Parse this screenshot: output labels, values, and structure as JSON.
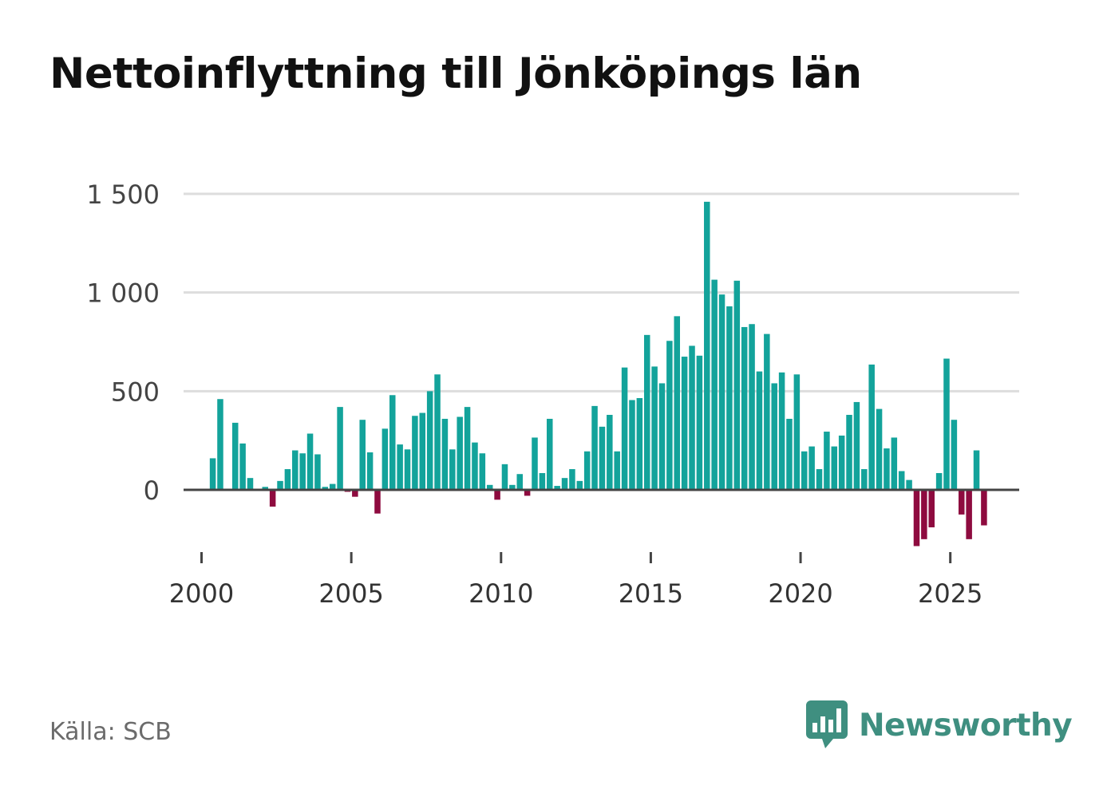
{
  "title": "Nettoinflyttning till Jönköpings län",
  "source": "Källa: SCB",
  "brand": {
    "name": "Newsworthy",
    "icon": "bar-chart-speech-bubble-icon"
  },
  "colors": {
    "positive": "#13a39b",
    "negative": "#8e0b3f",
    "grid": "#dddddd",
    "axis": "#444444",
    "brand": "#3f8f80"
  },
  "chart_data": {
    "type": "bar",
    "title": "Nettoinflyttning till Jönköpings län",
    "xlabel": "",
    "ylabel": "",
    "frequency": "quarterly",
    "start": 2000,
    "xlim": [
      1999.4,
      2027.3
    ],
    "ylim": [
      -380,
      1500
    ],
    "y_ticks": [
      0,
      500,
      1000,
      1500
    ],
    "y_tick_labels": [
      "0",
      "500",
      "1 000",
      "1 500"
    ],
    "x_ticks": [
      2000,
      2005,
      2010,
      2015,
      2020,
      2025
    ],
    "x_tick_labels": [
      "2000",
      "2005",
      "2010",
      "2015",
      "2020",
      "2025"
    ],
    "grid": true,
    "values": [
      null,
      160,
      460,
      0,
      340,
      235,
      60,
      0,
      15,
      -85,
      45,
      105,
      200,
      185,
      285,
      180,
      15,
      30,
      420,
      -10,
      -35,
      355,
      190,
      -120,
      310,
      480,
      230,
      205,
      375,
      390,
      500,
      585,
      360,
      205,
      370,
      420,
      240,
      185,
      25,
      -50,
      130,
      25,
      80,
      -30,
      265,
      85,
      360,
      20,
      60,
      105,
      45,
      195,
      425,
      320,
      380,
      195,
      620,
      455,
      465,
      785,
      625,
      540,
      755,
      880,
      675,
      730,
      680,
      1460,
      1065,
      990,
      930,
      1060,
      825,
      840,
      600,
      790,
      540,
      595,
      360,
      585,
      195,
      220,
      105,
      295,
      220,
      275,
      380,
      445,
      105,
      635,
      410,
      210,
      265,
      95,
      50,
      -285,
      -250,
      -190,
      85,
      665,
      355,
      -125,
      -250,
      200,
      -180
    ]
  }
}
